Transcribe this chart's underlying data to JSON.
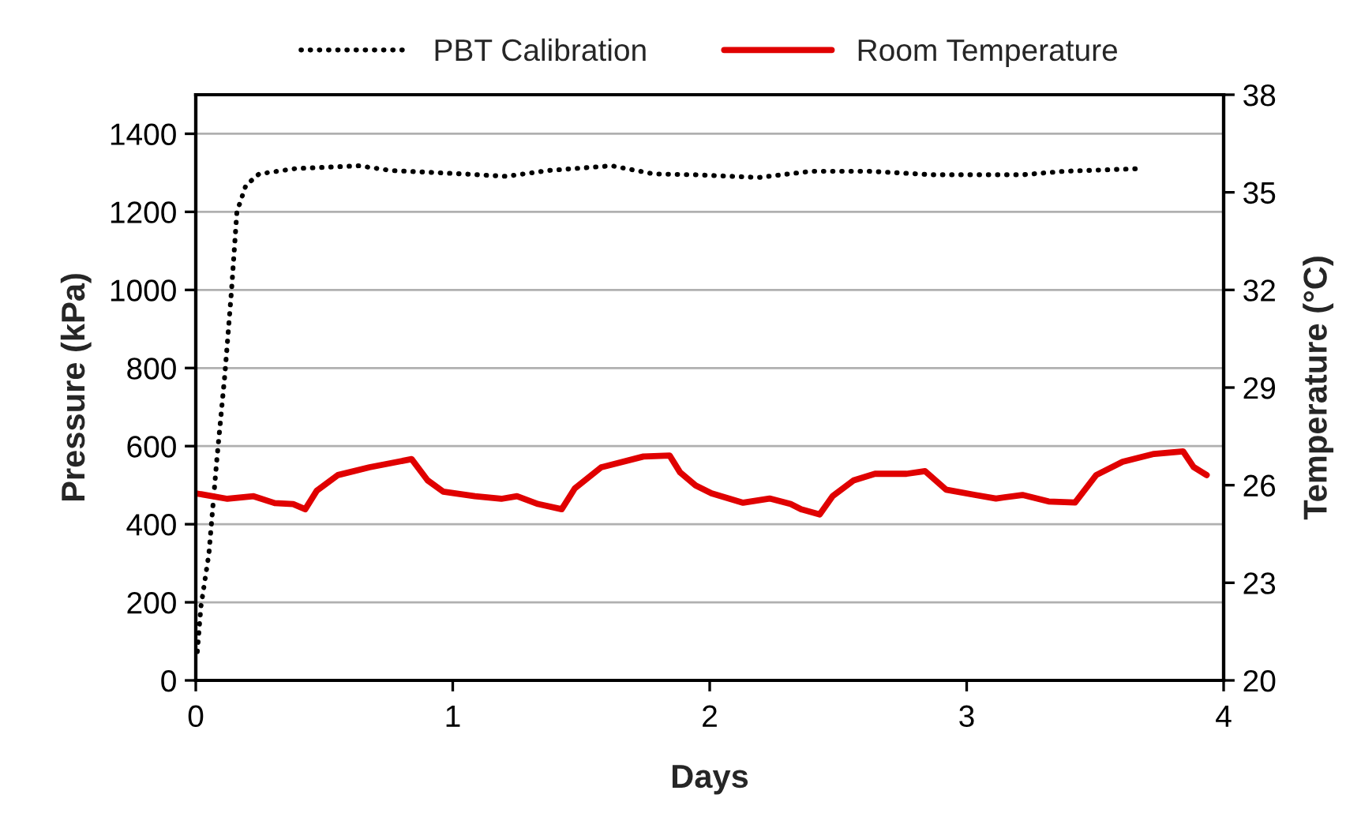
{
  "chart_data": {
    "type": "line",
    "xlabel": "Days",
    "ylabel": "Pressure (kPa)",
    "y2label": "Temperature (°C)",
    "xlim": [
      0,
      4
    ],
    "xticks": [
      0,
      1,
      2,
      3,
      4
    ],
    "ylim": [
      0,
      1500
    ],
    "yticks": [
      0,
      200,
      400,
      600,
      800,
      1000,
      1200,
      1400
    ],
    "y2lim": [
      20,
      38
    ],
    "y2ticks": [
      20,
      23,
      26,
      29,
      32,
      35,
      38
    ],
    "grid": "y",
    "legend": "top",
    "marker": "none",
    "series": [
      {
        "name": "PBT Calibration",
        "color": "#000000",
        "line_style": "dotted",
        "x": [
          0.006,
          0.02,
          0.051,
          0.082,
          0.113,
          0.139,
          0.16,
          0.195,
          0.246,
          0.389,
          0.635,
          0.758,
          1.045,
          1.209,
          1.373,
          1.619,
          1.783,
          1.945,
          2.191,
          2.396,
          2.622,
          2.868,
          3.217,
          3.381,
          3.688
        ],
        "values": [
          74,
          189,
          324,
          566,
          782,
          998,
          1200,
          1268,
          1297,
          1311,
          1318,
          1306,
          1297,
          1291,
          1306,
          1318,
          1297,
          1295,
          1288,
          1304,
          1304,
          1295,
          1295,
          1304,
          1311
        ]
      },
      {
        "name": "Room Temperature",
        "color": "#e00000",
        "line_style": "solid",
        "axis": "y2",
        "x": [
          0,
          0.123,
          0.225,
          0.307,
          0.379,
          0.426,
          0.471,
          0.553,
          0.676,
          0.84,
          0.902,
          0.963,
          1.086,
          1.189,
          1.25,
          1.332,
          1.424,
          1.475,
          1.578,
          1.742,
          1.844,
          1.885,
          1.945,
          2.007,
          2.13,
          2.233,
          2.315,
          2.356,
          2.428,
          2.479,
          2.561,
          2.643,
          2.766,
          2.838,
          2.92,
          3.032,
          3.114,
          3.217,
          3.319,
          3.422,
          3.504,
          3.607,
          3.729,
          3.842,
          3.883,
          3.934
        ],
        "values": [
          25.75,
          25.58,
          25.66,
          25.45,
          25.42,
          25.26,
          25.83,
          26.31,
          26.55,
          26.8,
          26.15,
          25.8,
          25.66,
          25.58,
          25.66,
          25.42,
          25.26,
          25.9,
          26.55,
          26.88,
          26.91,
          26.39,
          25.99,
          25.75,
          25.46,
          25.59,
          25.42,
          25.26,
          25.1,
          25.67,
          26.15,
          26.35,
          26.35,
          26.43,
          25.86,
          25.7,
          25.59,
          25.7,
          25.5,
          25.47,
          26.31,
          26.72,
          26.96,
          27.04,
          26.56,
          26.31
        ]
      }
    ]
  }
}
